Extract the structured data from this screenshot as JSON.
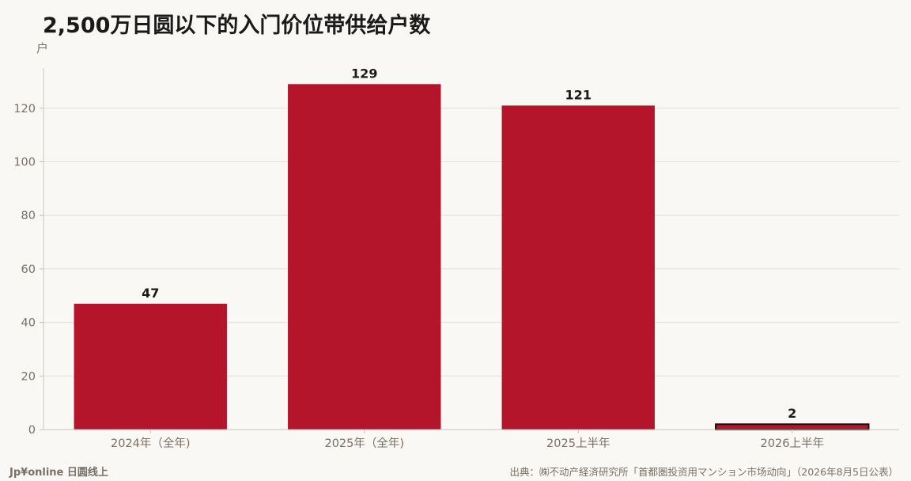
{
  "title": "2,500万日圆以下的入门价位带供给户数",
  "unit_label": "户",
  "footer": {
    "brand": "Jp¥online 日圆线上",
    "source": "出典：㈱不动产経済研究所「首都圏投资用マンション市场动向」（2026年8月5日公表）"
  },
  "colors": {
    "bar": "#b5152b",
    "bar_highlight_outline": "#2a0a0a",
    "grid": "#e4e0da",
    "axis_text": "#7a6f66",
    "value_text": "#1a1a1a"
  },
  "chart_data": {
    "type": "bar",
    "categories": [
      "2024年（全年)",
      "2025年（全年)",
      "2025上半年",
      "2026上半年"
    ],
    "values": [
      47,
      129,
      121,
      2
    ],
    "ylim": [
      0,
      135
    ],
    "yticks": [
      0,
      20,
      40,
      60,
      80,
      100,
      120
    ],
    "grid": true,
    "highlight_index": 3
  }
}
